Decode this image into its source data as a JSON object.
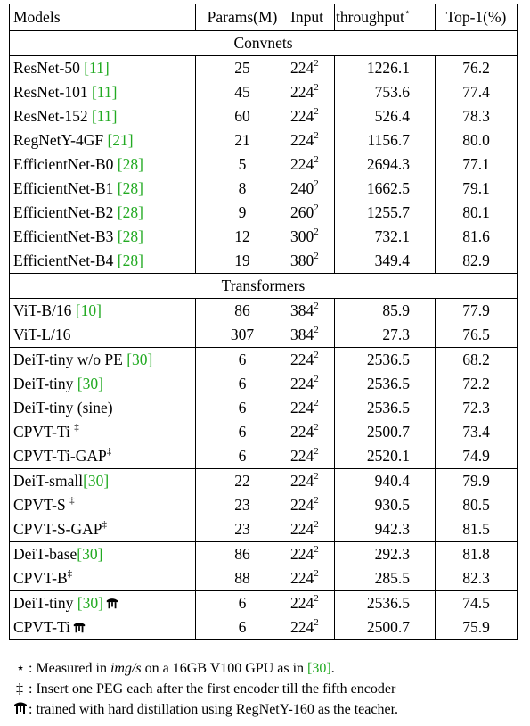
{
  "header": {
    "models": "Models",
    "params": "Params(M)",
    "input": "Input",
    "throughput": "throughput",
    "throughput_mark": "⋆",
    "top1": "Top-1(%)"
  },
  "sections": {
    "convnets": "Convnets",
    "transformers": "Transformers"
  },
  "rows": [
    {
      "name": "ResNet-50 ",
      "cite": "[11]",
      "mark": "",
      "params": "25",
      "input": "224",
      "exp": "2",
      "tp": "1226.1",
      "top": "76.2"
    },
    {
      "name": "ResNet-101 ",
      "cite": "[11]",
      "mark": "",
      "params": "45",
      "input": "224",
      "exp": "2",
      "tp": "753.6",
      "top": "77.4"
    },
    {
      "name": "ResNet-152 ",
      "cite": "[11]",
      "mark": "",
      "params": "60",
      "input": "224",
      "exp": "2",
      "tp": "526.4",
      "top": "78.3"
    },
    {
      "name": "RegNetY-4GF ",
      "cite": "[21]",
      "mark": "",
      "params": "21",
      "input": "224",
      "exp": "2",
      "tp": "1156.7",
      "top": "80.0"
    },
    {
      "name": "EfficientNet-B0 ",
      "cite": "[28]",
      "mark": "",
      "params": "5",
      "input": "224",
      "exp": "2",
      "tp": "2694.3",
      "top": "77.1"
    },
    {
      "name": "EfficientNet-B1 ",
      "cite": "[28]",
      "mark": "",
      "params": "8",
      "input": "240",
      "exp": "2",
      "tp": "1662.5",
      "top": "79.1"
    },
    {
      "name": "EfficientNet-B2 ",
      "cite": "[28]",
      "mark": "",
      "params": "9",
      "input": "260",
      "exp": "2",
      "tp": "1255.7",
      "top": "80.1"
    },
    {
      "name": "EfficientNet-B3 ",
      "cite": "[28]",
      "mark": "",
      "params": "12",
      "input": "300",
      "exp": "2",
      "tp": "732.1",
      "top": "81.6"
    },
    {
      "name": "EfficientNet-B4 ",
      "cite": "[28]",
      "mark": "",
      "params": "19",
      "input": "380",
      "exp": "2",
      "tp": "349.4",
      "top": "82.9"
    },
    {
      "name": "ViT-B/16 ",
      "cite": "[10]",
      "mark": "",
      "params": "86",
      "input": "384",
      "exp": "2",
      "tp": "85.9",
      "top": "77.9"
    },
    {
      "name": "ViT-L/16",
      "cite": "",
      "mark": "",
      "params": "307",
      "input": "384",
      "exp": "2",
      "tp": "27.3",
      "top": "76.5"
    },
    {
      "name": "DeiT-tiny w/o PE ",
      "cite": "[30]",
      "mark": "",
      "params": "6",
      "input": "224",
      "exp": "2",
      "tp": "2536.5",
      "top": "68.2"
    },
    {
      "name": "DeiT-tiny ",
      "cite": "[30]",
      "mark": "",
      "params": "6",
      "input": "224",
      "exp": "2",
      "tp": "2536.5",
      "top": "72.2"
    },
    {
      "name": "DeiT-tiny (sine)",
      "cite": "",
      "mark": "",
      "params": "6",
      "input": "224",
      "exp": "2",
      "tp": "2536.5",
      "top": "72.3"
    },
    {
      "name": "CPVT-Ti ",
      "cite": "",
      "mark": "‡",
      "params": "6",
      "input": "224",
      "exp": "2",
      "tp": "2500.7",
      "top": "73.4"
    },
    {
      "name": "CPVT-Ti-GAP",
      "cite": "",
      "mark": "‡",
      "params": "6",
      "input": "224",
      "exp": "2",
      "tp": "2520.1",
      "top": "74.9"
    },
    {
      "name": "DeiT-small",
      "cite": "[30]",
      "mark": "",
      "params": "22",
      "input": "224",
      "exp": "2",
      "tp": "940.4",
      "top": "79.9"
    },
    {
      "name": "CPVT-S ",
      "cite": "",
      "mark": "‡",
      "params": "23",
      "input": "224",
      "exp": "2",
      "tp": "930.5",
      "top": "80.5"
    },
    {
      "name": "CPVT-S-GAP",
      "cite": "",
      "mark": "‡",
      "params": "23",
      "input": "224",
      "exp": "2",
      "tp": "942.3",
      "top": "81.5"
    },
    {
      "name": "DeiT-base",
      "cite": "[30]",
      "mark": "",
      "params": "86",
      "input": "224",
      "exp": "2",
      "tp": "292.3",
      "top": "81.8"
    },
    {
      "name": "CPVT-B",
      "cite": "",
      "mark": "‡",
      "params": "88",
      "input": "224",
      "exp": "2",
      "tp": "285.5",
      "top": "82.3"
    },
    {
      "name": "DeiT-tiny ",
      "cite": "[30]",
      "mark": "",
      "params": "6",
      "input": "224",
      "exp": "2",
      "tp": "2536.5",
      "top": "74.5"
    },
    {
      "name": "CPVT-Ti",
      "cite": "",
      "mark": "",
      "params": "6",
      "input": "224",
      "exp": "2",
      "tp": "2500.7",
      "top": "75.9"
    }
  ],
  "notes": {
    "star_mark": "⋆",
    "star_pre": ": Measured in ",
    "star_em": "img/s",
    "star_post": " on a 16GB V100 GPU as in ",
    "star_cite": "[30]",
    "star_end": ".",
    "dagger_mark": "‡",
    "dagger_text": ": Insert one PEG each after the first encoder till the fifth encoder",
    "alembic_text": ": trained with hard distillation using RegNetY-160 as the teacher."
  },
  "icons": {
    "distillation": "alembic-icon"
  },
  "colors": {
    "citation": "#22aa22"
  }
}
